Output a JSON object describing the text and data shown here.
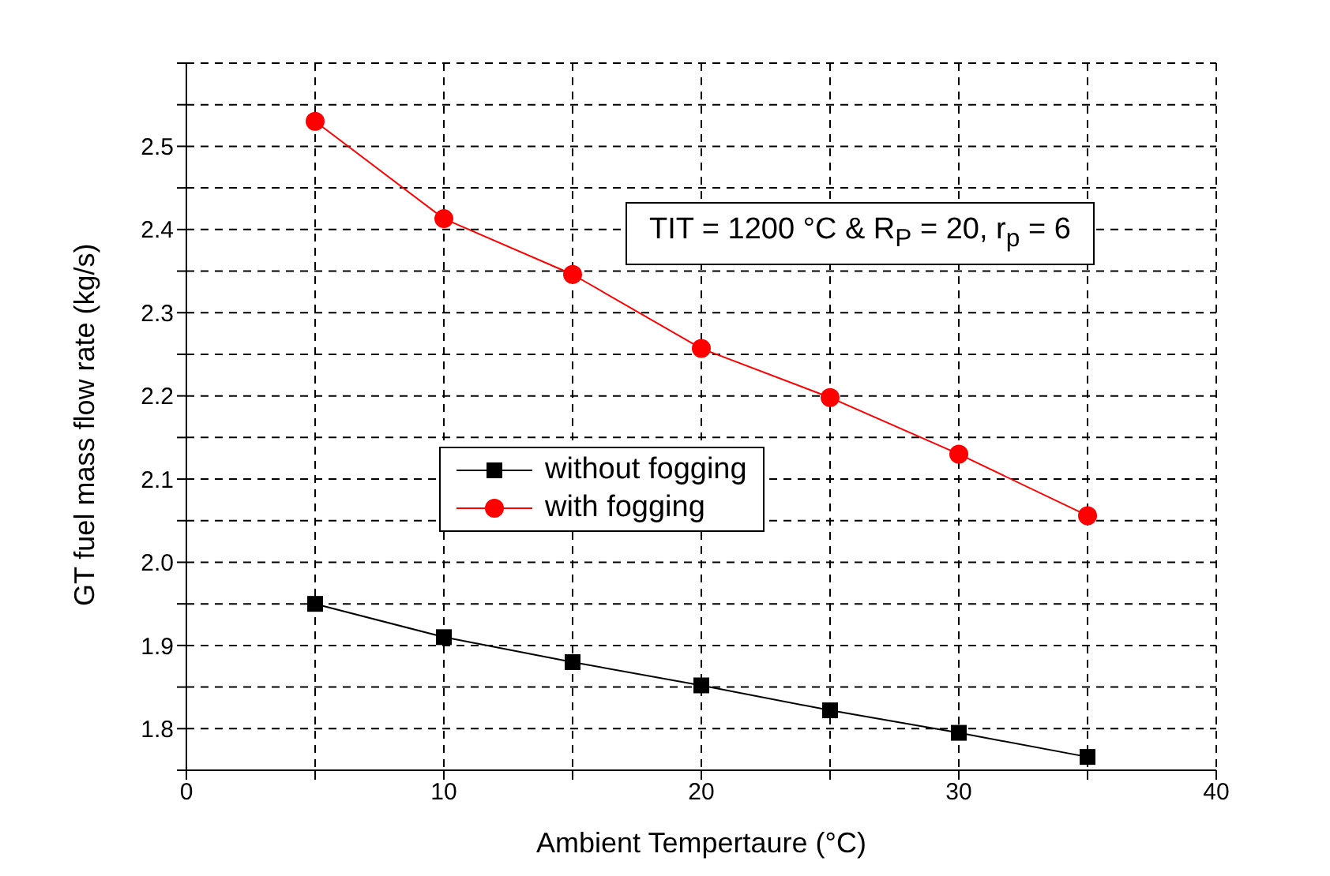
{
  "chart_data": {
    "type": "line",
    "xlabel": "Ambient Tempertaure (°C)",
    "ylabel": "GT fuel mass flow rate (kg/s)",
    "annotations": [
      "TIT = 1200 °C & R$_{P}$ = 20, r$_{p}$ = 6"
    ],
    "x": [
      5,
      10,
      15,
      20,
      25,
      30,
      35
    ],
    "series": [
      {
        "name": "without fogging",
        "color": "#000000",
        "marker": "square",
        "values": [
          1.95,
          1.91,
          1.88,
          1.852,
          1.822,
          1.795,
          1.766
        ]
      },
      {
        "name": "with fogging",
        "color": "#ff0000",
        "marker": "circle",
        "values": [
          2.53,
          2.413,
          2.346,
          2.257,
          2.198,
          2.13,
          2.056
        ]
      }
    ],
    "xlim": [
      0,
      40
    ],
    "xticks": [
      0,
      {
        "value": 5,
        "label": null
      },
      10,
      {
        "value": 15,
        "label": null
      },
      20,
      {
        "value": 25,
        "label": null
      },
      30,
      {
        "value": 35,
        "label": null
      },
      40
    ],
    "ylim": [
      1.75,
      2.6
    ],
    "yticks": [
      {
        "value": 1.75,
        "label": null
      },
      1.8,
      {
        "value": 1.85,
        "label": null
      },
      1.9,
      {
        "value": 1.95,
        "label": null
      },
      {
        "value": 2.0,
        "label": "2.0"
      },
      {
        "value": 2.05,
        "label": null
      },
      2.1,
      {
        "value": 2.15,
        "label": null
      },
      2.2,
      {
        "value": 2.25,
        "label": null
      },
      2.3,
      {
        "value": 2.35,
        "label": null
      },
      2.4,
      {
        "value": 2.45,
        "label": null
      },
      2.5,
      {
        "value": 2.55,
        "label": null
      },
      {
        "value": 2.6,
        "label": null
      }
    ],
    "grid": true,
    "legend": "left",
    "line_style": "solid"
  }
}
